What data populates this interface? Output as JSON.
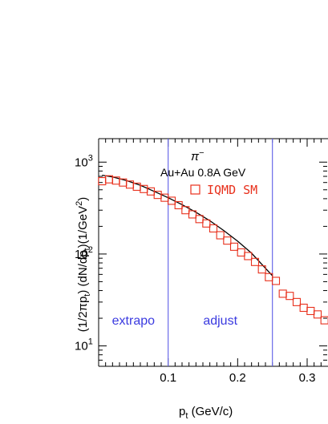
{
  "chart_data": {
    "type": "scatter",
    "particle": "π",
    "particle_charge": "−",
    "system": "Au+Au 0.8A GeV",
    "xlabel_main": "p",
    "xlabel_sub": "t",
    "xlabel_tail": " (GeV/c)",
    "ylabel_parts": [
      "(1/2πp",
      "t",
      ") (dN/dp",
      "t",
      ")(1/GeV",
      "2",
      ")"
    ],
    "xlim": [
      0.0,
      0.33
    ],
    "ylim": [
      6,
      1800
    ],
    "yscale": "log",
    "x_ticks": [
      0.1,
      0.2,
      0.3
    ],
    "x_tick_labels": [
      "0.1",
      "0.2",
      "0.3"
    ],
    "y_ticks": [
      {
        "base": "10",
        "exp": "1",
        "value": 10
      },
      {
        "base": "10",
        "exp": "2",
        "value": 100
      },
      {
        "base": "10",
        "exp": "3",
        "value": 1000
      }
    ],
    "vertical_lines": [
      0.1,
      0.25
    ],
    "region_labels": [
      {
        "text": "extrapo",
        "x": 0.05,
        "y": 17
      },
      {
        "text": "adjust",
        "x": 0.175,
        "y": 17
      }
    ],
    "series": [
      {
        "name": "IQMD SM",
        "marker": "open-square",
        "color": "#e8301c",
        "x": [
          0.005,
          0.015,
          0.025,
          0.035,
          0.045,
          0.055,
          0.065,
          0.075,
          0.085,
          0.095,
          0.105,
          0.115,
          0.125,
          0.135,
          0.145,
          0.155,
          0.165,
          0.175,
          0.185,
          0.195,
          0.205,
          0.215,
          0.225,
          0.235,
          0.245,
          0.255,
          0.265,
          0.275,
          0.285,
          0.295,
          0.305,
          0.315,
          0.325
        ],
        "y": [
          620,
          650,
          630,
          600,
          570,
          540,
          510,
          480,
          440,
          410,
          380,
          340,
          300,
          270,
          240,
          215,
          190,
          160,
          140,
          120,
          104,
          95,
          82,
          68,
          56,
          51,
          37,
          35,
          30,
          26,
          24,
          22,
          19
        ]
      }
    ],
    "fit_line": {
      "color": "#000000",
      "x": [
        0.005,
        0.02,
        0.04,
        0.06,
        0.08,
        0.1,
        0.12,
        0.14,
        0.16,
        0.18,
        0.2,
        0.22,
        0.24,
        0.25
      ],
      "y": [
        720,
        690,
        630,
        560,
        480,
        410,
        345,
        285,
        230,
        180,
        138,
        102,
        70,
        58
      ]
    },
    "vline_color": "#6a6ae8",
    "region_label_color": "#3a3ae0",
    "grid": false
  }
}
